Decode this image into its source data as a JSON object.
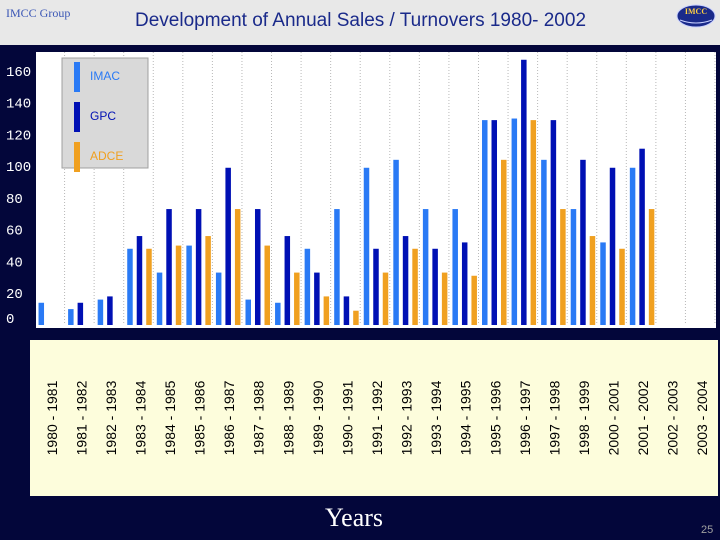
{
  "header": {
    "group": "IMCC Group",
    "title": "Development of Annual Sales / Turnovers  1980- 2002",
    "logo_text": "IMCC"
  },
  "footer": {
    "xlabel": "Years",
    "page_number": "25"
  },
  "colors": {
    "IMAC": "#2a7af5",
    "GPC": "#0010b4",
    "ADCE": "#f0a020",
    "plot_bg": "#ffffff",
    "label_panel": "#fdfddc",
    "frame": "#03063a"
  },
  "chart_data": {
    "type": "bar",
    "title": "Development of Annual Sales / Turnovers  1980- 2002",
    "xlabel": "Years",
    "ylabel": "",
    "ylim": [
      0,
      170
    ],
    "yticks": [
      0,
      20,
      40,
      60,
      80,
      100,
      120,
      140,
      160
    ],
    "grid": "vertical dotted lines",
    "legend": "top-left",
    "categories": [
      "1980 - 1981",
      "1981 - 1982",
      "1982 - 1983",
      "1983 - 1984",
      "1984 - 1985",
      "1985 - 1986",
      "1986 - 1987",
      "1987 - 1988",
      "1988 - 1989",
      "1989 - 1990",
      "1990 - 1991",
      "1991 - 1992",
      "1992 - 1993",
      "1993 - 1994",
      "1994 - 1995",
      "1995 - 1996",
      "1996 - 1997",
      "1997 - 1998",
      "1998 - 1999",
      "2000 - 2001",
      "2001 - 2002",
      "2002 - 2003",
      "2003 - 2004"
    ],
    "series": [
      {
        "name": "IMAC",
        "values": [
          14,
          10,
          16,
          48,
          33,
          50,
          33,
          16,
          14,
          48,
          73,
          99,
          104,
          73,
          73,
          129,
          130,
          104,
          73,
          52,
          99,
          null,
          null
        ]
      },
      {
        "name": "GPC",
        "values": [
          null,
          14,
          18,
          56,
          73,
          73,
          99,
          73,
          56,
          33,
          18,
          48,
          56,
          48,
          52,
          129,
          167,
          129,
          104,
          99,
          111,
          null,
          null
        ]
      },
      {
        "name": "ADCE",
        "values": [
          null,
          null,
          null,
          48,
          50,
          56,
          73,
          50,
          33,
          18,
          9,
          33,
          48,
          33,
          31,
          104,
          129,
          73,
          56,
          48,
          73,
          null,
          null
        ]
      }
    ]
  }
}
